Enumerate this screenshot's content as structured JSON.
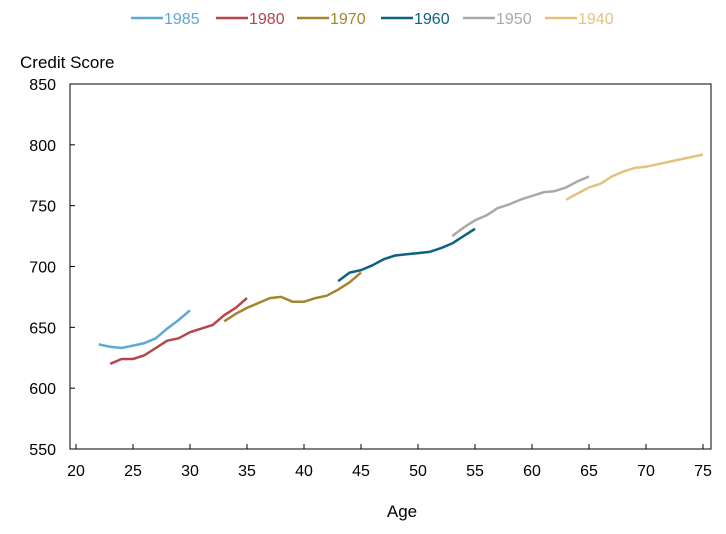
{
  "chart_data": {
    "type": "line",
    "title": "",
    "xlabel": "Age",
    "ylabel": "Credit Score",
    "xlim": [
      20,
      75
    ],
    "ylim": [
      550,
      850
    ],
    "x_ticks": [
      20,
      25,
      30,
      35,
      40,
      45,
      50,
      55,
      60,
      65,
      70,
      75
    ],
    "y_ticks": [
      550,
      600,
      650,
      700,
      750,
      800,
      850
    ],
    "grid": false,
    "legend_position": "top",
    "series": [
      {
        "name": "1985",
        "color": "#5DA9D6",
        "points": [
          [
            22,
            636
          ],
          [
            23,
            634
          ],
          [
            24,
            633
          ],
          [
            25,
            635
          ],
          [
            26,
            637
          ],
          [
            27,
            641
          ],
          [
            28,
            649
          ],
          [
            29,
            656
          ],
          [
            30,
            664
          ]
        ]
      },
      {
        "name": "1980",
        "color": "#B5454A",
        "points": [
          [
            23,
            620
          ],
          [
            24,
            624
          ],
          [
            25,
            624
          ],
          [
            26,
            627
          ],
          [
            27,
            633
          ],
          [
            28,
            639
          ],
          [
            29,
            641
          ],
          [
            30,
            646
          ],
          [
            31,
            649
          ],
          [
            32,
            652
          ],
          [
            33,
            660
          ],
          [
            34,
            666
          ],
          [
            35,
            674
          ]
        ]
      },
      {
        "name": "1970",
        "color": "#A4852E",
        "points": [
          [
            33,
            655
          ],
          [
            34,
            661
          ],
          [
            35,
            666
          ],
          [
            36,
            670
          ],
          [
            37,
            674
          ],
          [
            38,
            675
          ],
          [
            39,
            671
          ],
          [
            40,
            671
          ],
          [
            41,
            674
          ],
          [
            42,
            676
          ],
          [
            43,
            681
          ],
          [
            44,
            687
          ],
          [
            45,
            695
          ]
        ]
      },
      {
        "name": "1960",
        "color": "#0E6183",
        "points": [
          [
            43,
            688
          ],
          [
            44,
            695
          ],
          [
            45,
            697
          ],
          [
            46,
            701
          ],
          [
            47,
            706
          ],
          [
            48,
            709
          ],
          [
            49,
            710
          ],
          [
            50,
            711
          ],
          [
            51,
            712
          ],
          [
            52,
            715
          ],
          [
            53,
            719
          ],
          [
            54,
            725
          ],
          [
            55,
            731
          ]
        ]
      },
      {
        "name": "1950",
        "color": "#A9A9AB",
        "points": [
          [
            53,
            725
          ],
          [
            54,
            732
          ],
          [
            55,
            738
          ],
          [
            56,
            742
          ],
          [
            57,
            748
          ],
          [
            58,
            751
          ],
          [
            59,
            755
          ],
          [
            60,
            758
          ],
          [
            61,
            761
          ],
          [
            62,
            762
          ],
          [
            63,
            765
          ],
          [
            64,
            770
          ],
          [
            65,
            774
          ]
        ]
      },
      {
        "name": "1940",
        "color": "#E2C37E",
        "points": [
          [
            63,
            755
          ],
          [
            64,
            760
          ],
          [
            65,
            765
          ],
          [
            66,
            768
          ],
          [
            67,
            774
          ],
          [
            68,
            778
          ],
          [
            69,
            781
          ],
          [
            70,
            782
          ],
          [
            71,
            784
          ],
          [
            72,
            786
          ],
          [
            73,
            788
          ],
          [
            74,
            790
          ],
          [
            75,
            792
          ]
        ]
      }
    ]
  }
}
